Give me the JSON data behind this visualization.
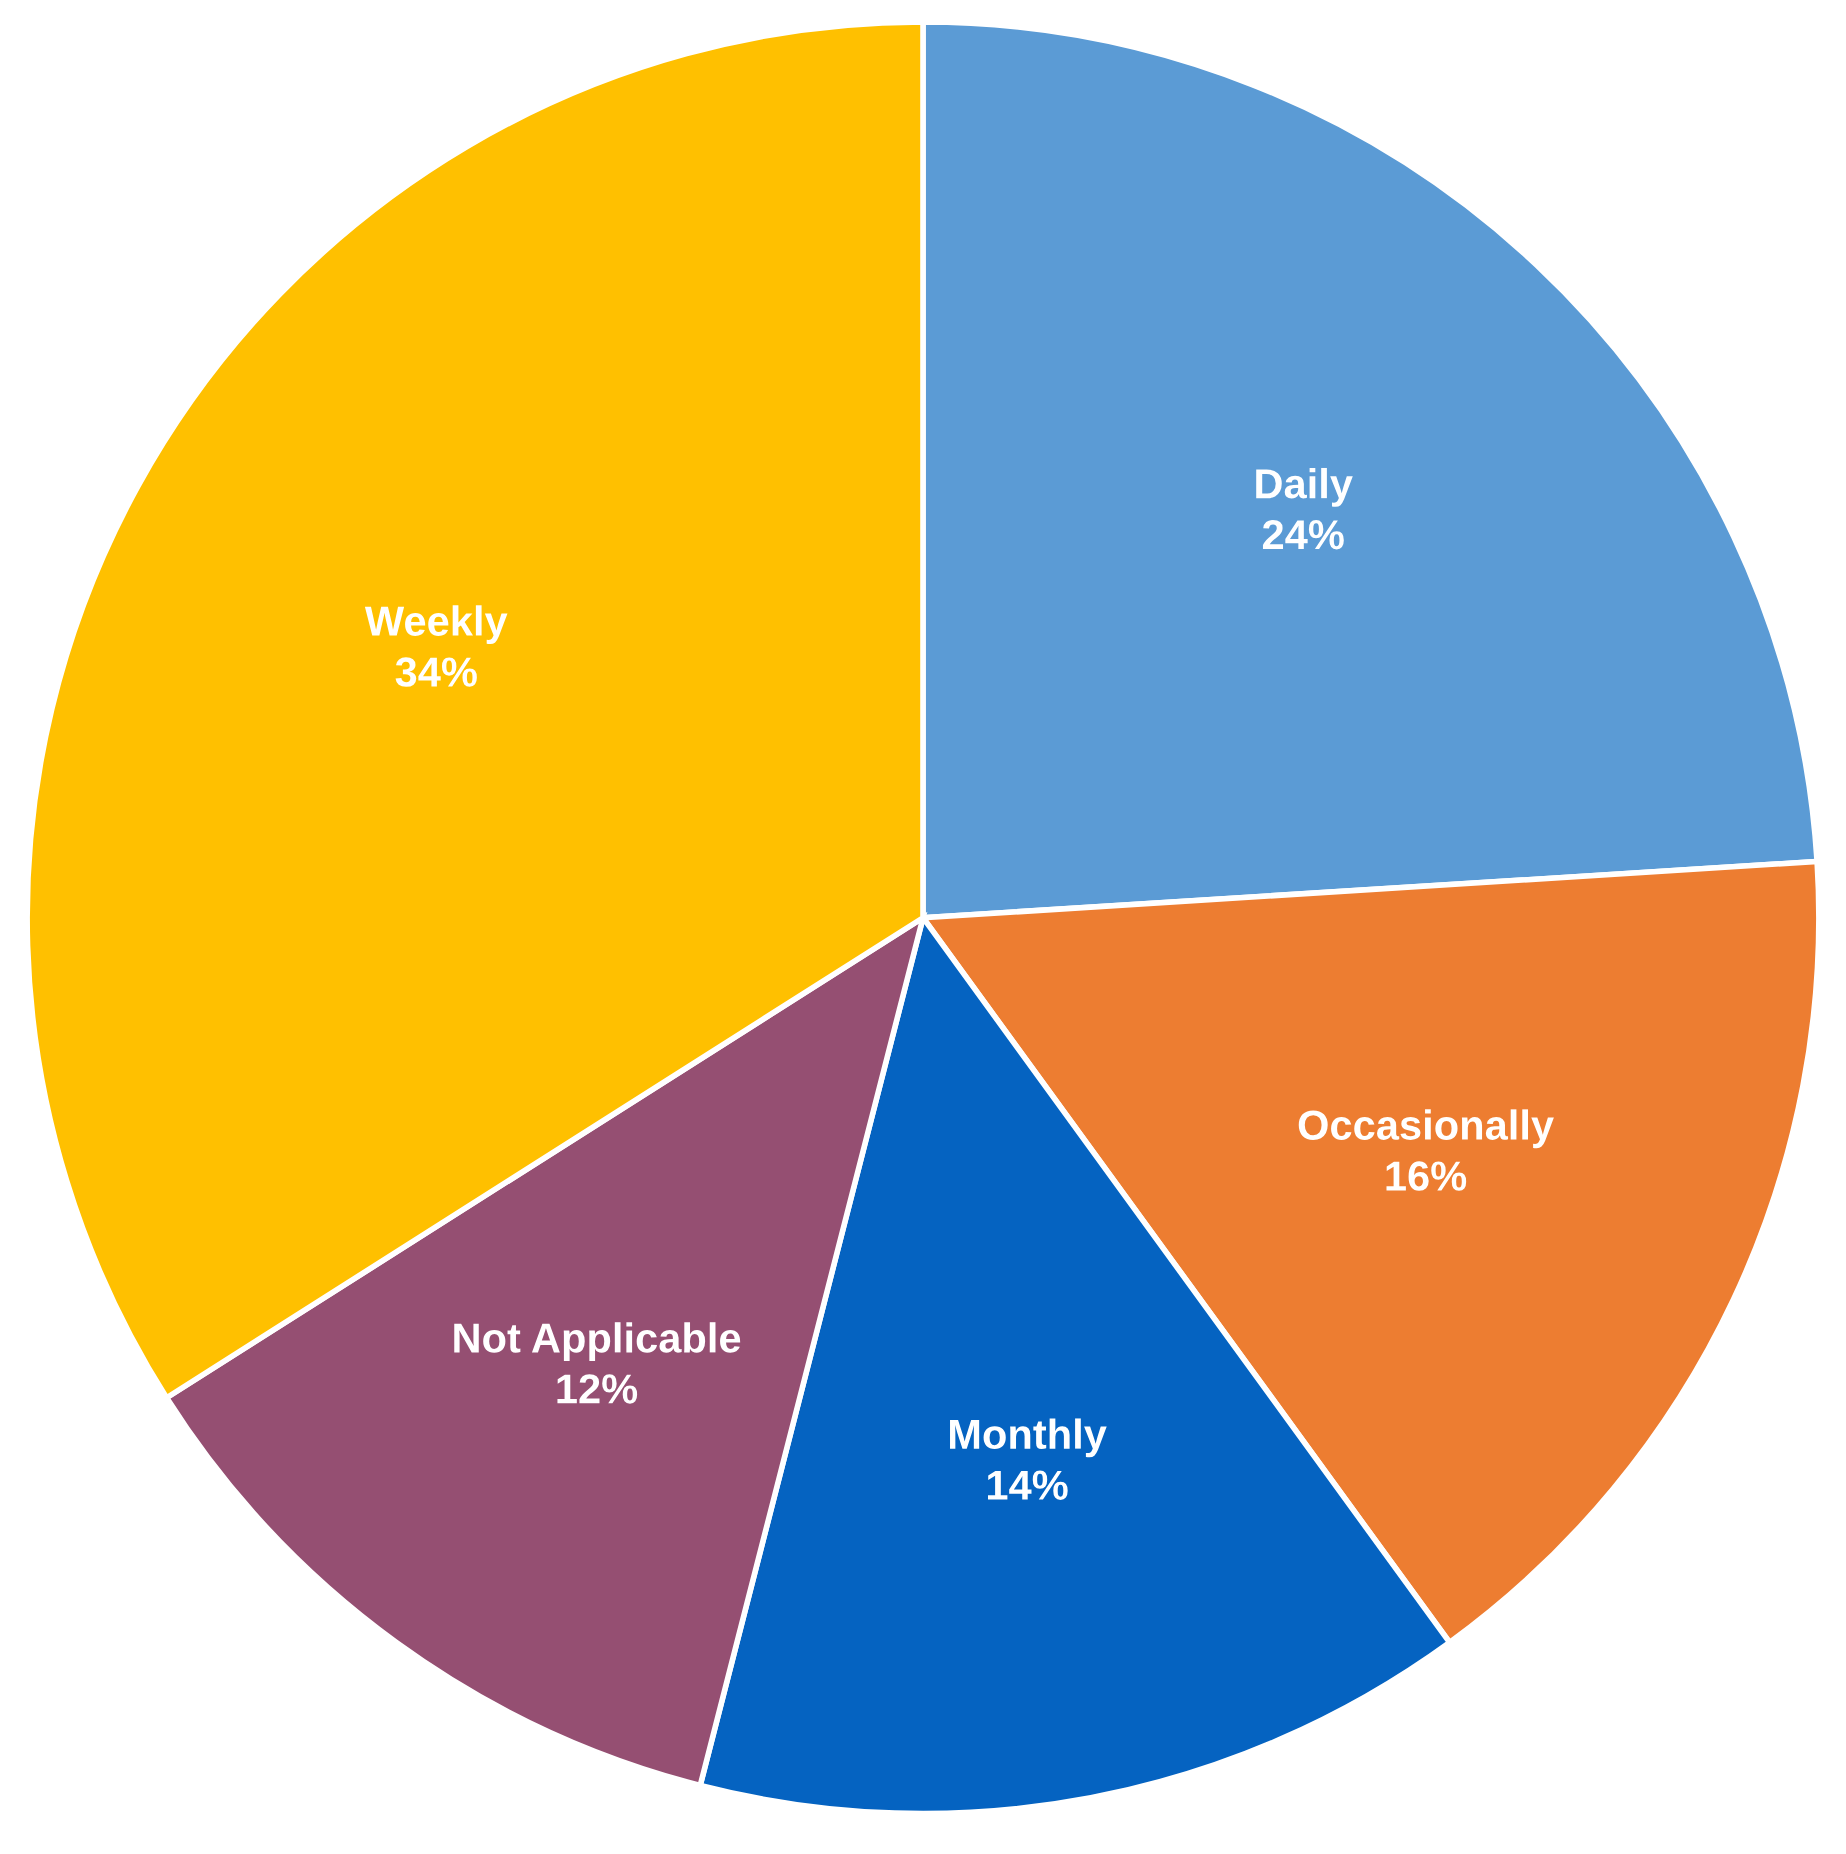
{
  "chart_data": {
    "type": "pie",
    "categories": [
      "Daily",
      "Occasionally",
      "Monthly",
      "Not Applicable",
      "Weekly"
    ],
    "values": [
      24,
      16,
      14,
      12,
      34
    ],
    "value_labels": [
      "24%",
      "16%",
      "14%",
      "12%",
      "34%"
    ],
    "colors": [
      "#5b9bd5",
      "#ed7d31",
      "#0563c1",
      "#954f72",
      "#ffc000"
    ],
    "legend": false
  }
}
